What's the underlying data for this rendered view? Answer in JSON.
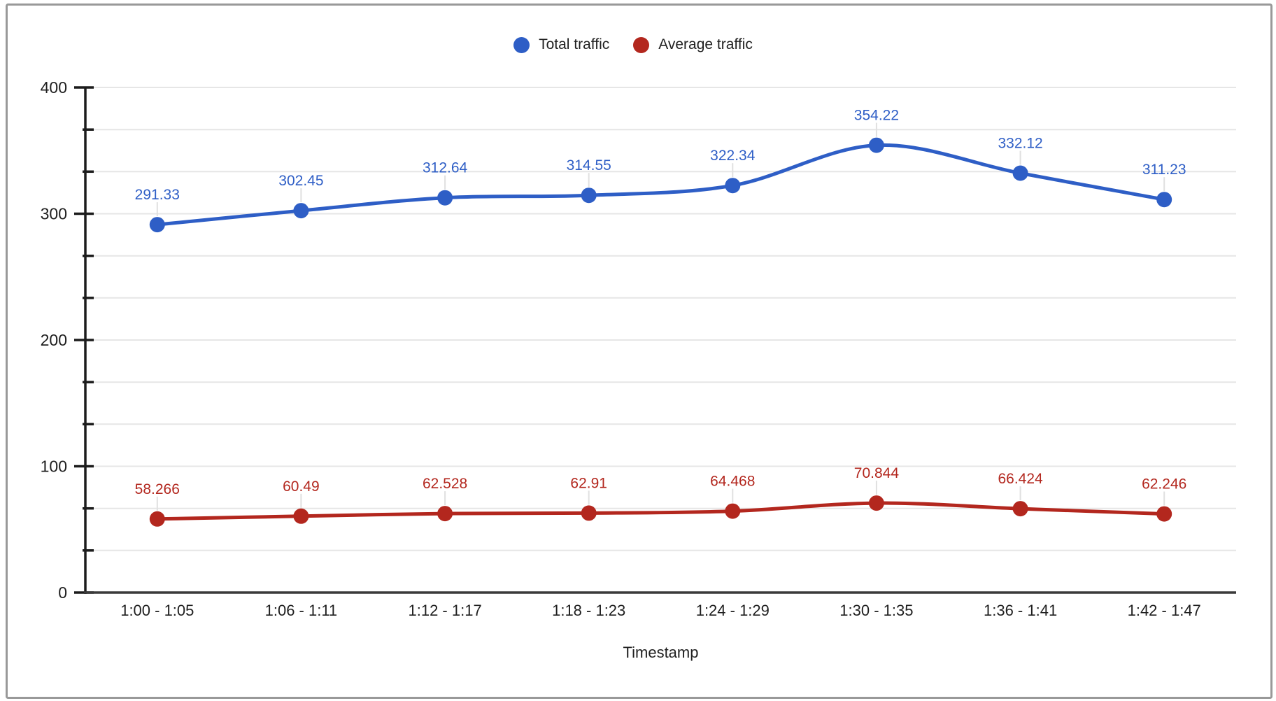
{
  "chart_data": {
    "type": "line",
    "smooth": true,
    "title": "",
    "xlabel": "Timestamp",
    "ylabel": "",
    "legend_position": "top",
    "grid": true,
    "data_labels": true,
    "ylim": [
      0,
      400
    ],
    "y_major_ticks": [
      0,
      100,
      200,
      300,
      400
    ],
    "y_minor_divisions_per_major": 3,
    "grid_color": "#e6e6e6",
    "axis_color": "#1c1c1c",
    "text_color": "#1f1f1f",
    "label_stub_color": "#e0e0e0",
    "categories": [
      "1:00 - 1:05",
      "1:06 - 1:11",
      "1:12 - 1:17",
      "1:18 - 1:23",
      "1:24 - 1:29",
      "1:30 - 1:35",
      "1:36 - 1:41",
      "1:42 - 1:47"
    ],
    "series": [
      {
        "name": "Total traffic",
        "color": "#2e5ec6",
        "values": [
          291.33,
          302.45,
          312.64,
          314.55,
          322.34,
          354.22,
          332.12,
          311.23
        ],
        "labels": [
          "291.33",
          "302.45",
          "312.64",
          "314.55",
          "322.34",
          "354.22",
          "332.12",
          "311.23"
        ]
      },
      {
        "name": "Average traffic",
        "color": "#b3271e",
        "values": [
          58.266,
          60.49,
          62.528,
          62.91,
          64.468,
          70.844,
          66.424,
          62.246
        ],
        "labels": [
          "58.266",
          "60.49",
          "62.528",
          "62.91",
          "64.468",
          "70.844",
          "66.424",
          "62.246"
        ]
      }
    ]
  },
  "window": {
    "border_color": "#999999",
    "background": "#ffffff"
  }
}
